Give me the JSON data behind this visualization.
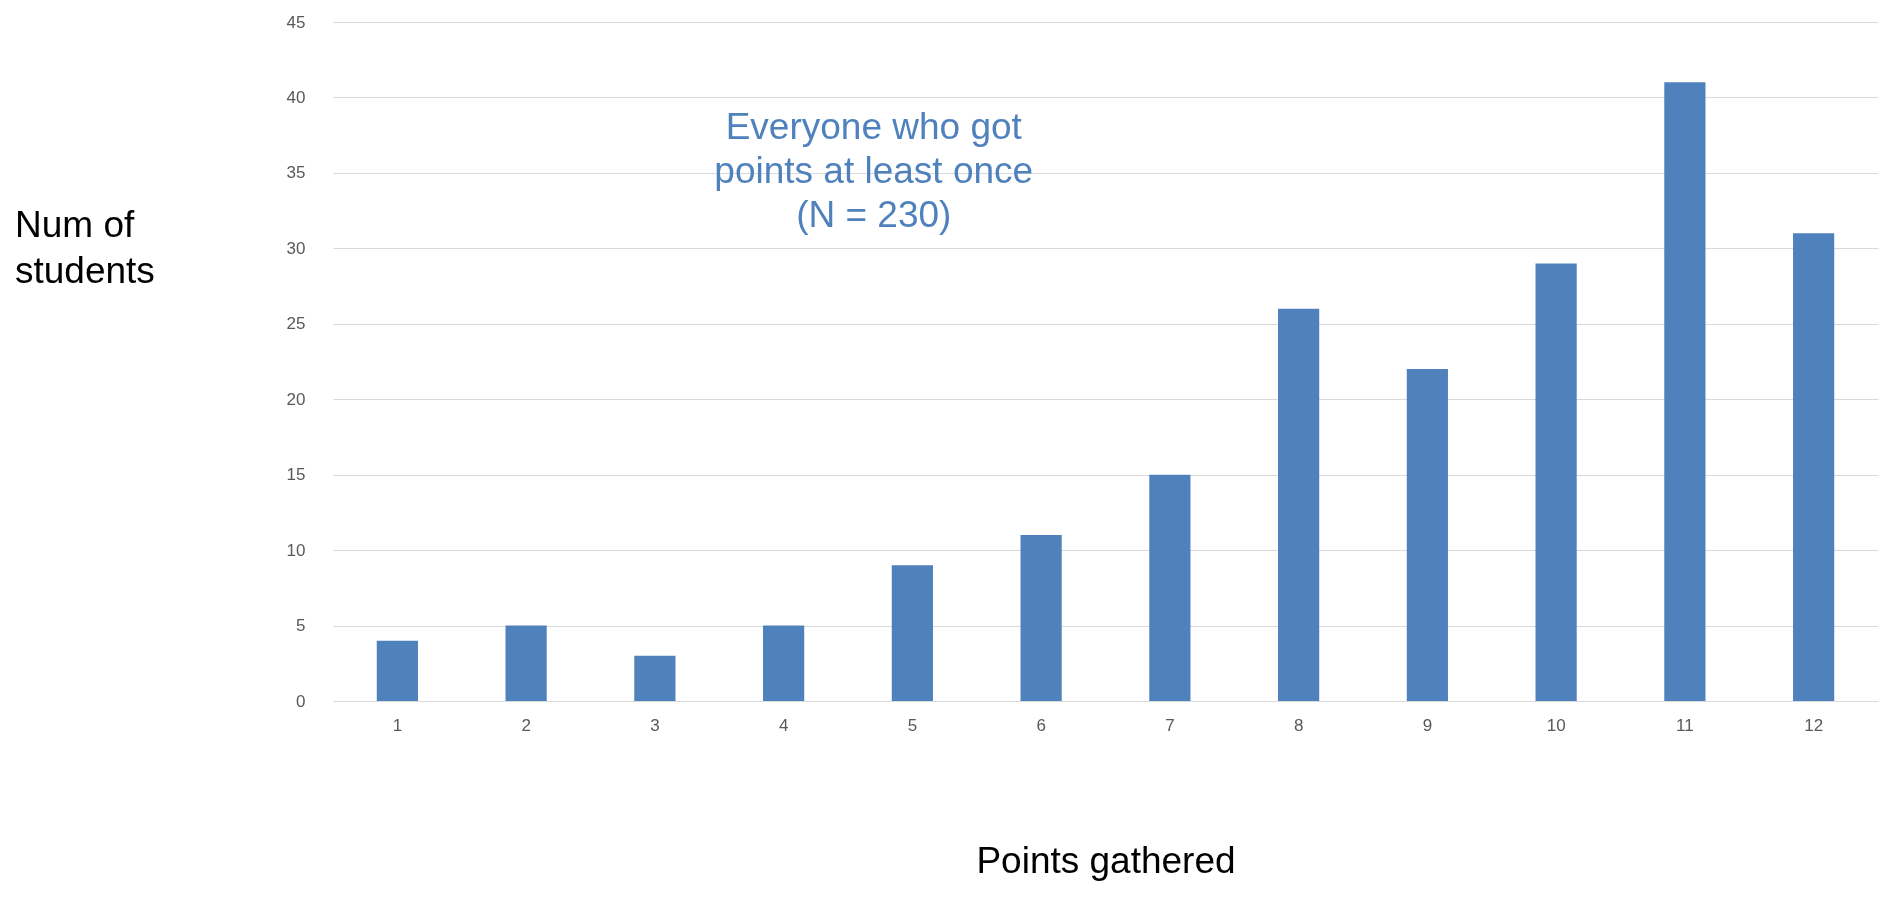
{
  "chart_data": {
    "type": "bar",
    "xlabel": "Points gathered",
    "ylabel": "Num of\nstudents",
    "annotations": [
      "Everyone who got\npoints at least once\n(N = 230)"
    ],
    "categories": [
      "1",
      "2",
      "3",
      "4",
      "5",
      "6",
      "7",
      "8",
      "9",
      "10",
      "11",
      "12"
    ],
    "values": [
      4,
      5,
      3,
      5,
      9,
      11,
      15,
      26,
      22,
      29,
      41,
      31
    ],
    "color": "#4f81bd",
    "ylim": [
      0,
      45
    ],
    "yticks": [
      0,
      5,
      10,
      15,
      20,
      25,
      30,
      35,
      40,
      45
    ],
    "grid": "y"
  }
}
